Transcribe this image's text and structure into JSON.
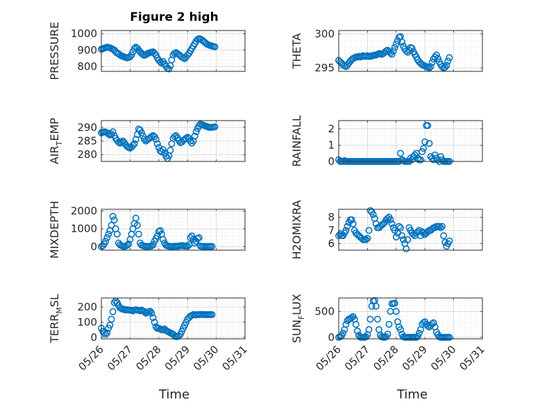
{
  "figure": {
    "title": "Figure 2 high",
    "xlabel": "Time",
    "marker_color": "#0072BD"
  },
  "chart_data": [
    {
      "type": "scatter",
      "title": "Figure 2 high",
      "ylabel": "PRESSURE",
      "ylim": [
        770,
        1020
      ],
      "yticks": [
        "800",
        "900",
        "1000"
      ],
      "ytick_values": [
        800,
        900,
        1000
      ],
      "xticks": [],
      "xlim": [
        0,
        5
      ],
      "x": [
        0.0,
        0.05,
        0.1,
        0.15,
        0.2,
        0.25,
        0.3,
        0.35,
        0.4,
        0.45,
        0.5,
        0.55,
        0.6,
        0.65,
        0.7,
        0.75,
        0.8,
        0.85,
        0.9,
        0.95,
        1.0,
        1.05,
        1.1,
        1.15,
        1.2,
        1.25,
        1.3,
        1.35,
        1.4,
        1.45,
        1.5,
        1.55,
        1.6,
        1.65,
        1.7,
        1.75,
        1.8,
        1.85,
        1.9,
        1.95,
        2.0,
        2.05,
        2.1,
        2.15,
        2.2,
        2.25,
        2.3,
        2.35,
        2.4,
        2.45,
        2.5,
        2.55,
        2.6,
        2.65,
        2.7,
        2.75,
        2.8,
        2.85,
        2.9,
        2.95,
        3.0,
        3.05,
        3.1,
        3.15,
        3.2,
        3.25,
        3.3,
        3.35,
        3.4,
        3.45,
        3.5,
        3.55,
        3.6,
        3.65,
        3.7,
        3.75,
        3.8,
        3.85,
        3.9,
        3.95
      ],
      "values": [
        905,
        908,
        912,
        915,
        918,
        916,
        914,
        910,
        905,
        900,
        890,
        882,
        878,
        870,
        865,
        862,
        858,
        855,
        852,
        855,
        860,
        870,
        890,
        910,
        918,
        912,
        900,
        890,
        880,
        872,
        868,
        872,
        878,
        882,
        885,
        888,
        890,
        880,
        870,
        852,
        838,
        828,
        820,
        830,
        815,
        800,
        790,
        785,
        805,
        840,
        870,
        880,
        885,
        878,
        872,
        865,
        858,
        852,
        848,
        858,
        870,
        880,
        895,
        910,
        925,
        940,
        955,
        965,
        970,
        968,
        962,
        955,
        948,
        940,
        935,
        930,
        928,
        925,
        922,
        920
      ]
    },
    {
      "type": "scatter",
      "ylabel": "THETA",
      "ylim": [
        294.5,
        300.5
      ],
      "yticks": [
        "295",
        "300"
      ],
      "ytick_values": [
        295,
        300
      ],
      "xticks": [],
      "xlim": [
        0,
        5
      ],
      "x": [
        0.0,
        0.05,
        0.1,
        0.15,
        0.2,
        0.25,
        0.3,
        0.35,
        0.4,
        0.45,
        0.5,
        0.55,
        0.6,
        0.65,
        0.7,
        0.75,
        0.8,
        0.85,
        0.9,
        0.95,
        1.0,
        1.05,
        1.1,
        1.15,
        1.2,
        1.25,
        1.3,
        1.35,
        1.4,
        1.45,
        1.5,
        1.55,
        1.6,
        1.65,
        1.7,
        1.75,
        1.8,
        1.85,
        1.9,
        1.95,
        2.0,
        2.05,
        2.1,
        2.15,
        2.2,
        2.25,
        2.3,
        2.35,
        2.4,
        2.45,
        2.5,
        2.55,
        2.6,
        2.65,
        2.7,
        2.75,
        2.8,
        2.85,
        2.9,
        2.95,
        3.0,
        3.05,
        3.1,
        3.15,
        3.2,
        3.25,
        3.3,
        3.35,
        3.4,
        3.45,
        3.5,
        3.55,
        3.6,
        3.65,
        3.7,
        3.75,
        3.8,
        3.85
      ],
      "values": [
        296.1,
        295.9,
        295.7,
        295.5,
        295.3,
        295.2,
        295.4,
        295.7,
        296.0,
        296.2,
        296.4,
        296.5,
        296.6,
        296.6,
        296.7,
        296.6,
        296.7,
        296.8,
        296.7,
        296.7,
        296.8,
        296.7,
        296.7,
        296.8,
        296.8,
        296.9,
        296.9,
        297.0,
        297.1,
        297.1,
        297.0,
        297.1,
        297.3,
        297.5,
        297.6,
        297.4,
        297.2,
        297.0,
        297.5,
        298.0,
        298.5,
        299.0,
        299.5,
        299.6,
        298.8,
        298.2,
        297.8,
        297.5,
        297.3,
        297.6,
        298.0,
        297.9,
        297.4,
        297.0,
        296.6,
        296.2,
        295.9,
        295.7,
        295.5,
        295.4,
        295.3,
        295.2,
        295.1,
        295.0,
        295.2,
        295.8,
        296.3,
        296.6,
        296.9,
        296.4,
        295.9,
        295.5,
        295.2,
        295.0,
        295.1,
        295.4,
        296.0,
        296.5
      ]
    },
    {
      "type": "scatter",
      "ylabel": "AIR_TEMP",
      "ylim": [
        277.5,
        292.5
      ],
      "yticks": [
        "280",
        "285",
        "290"
      ],
      "ytick_values": [
        280,
        285,
        290
      ],
      "xticks": [],
      "xlim": [
        0,
        5
      ],
      "x": [
        0.0,
        0.05,
        0.1,
        0.15,
        0.2,
        0.25,
        0.3,
        0.35,
        0.4,
        0.45,
        0.5,
        0.55,
        0.6,
        0.65,
        0.7,
        0.75,
        0.8,
        0.85,
        0.9,
        0.95,
        1.0,
        1.05,
        1.1,
        1.15,
        1.2,
        1.25,
        1.3,
        1.35,
        1.4,
        1.45,
        1.5,
        1.55,
        1.6,
        1.65,
        1.7,
        1.75,
        1.8,
        1.85,
        1.9,
        1.95,
        2.0,
        2.05,
        2.1,
        2.15,
        2.2,
        2.25,
        2.3,
        2.35,
        2.4,
        2.45,
        2.5,
        2.55,
        2.6,
        2.65,
        2.7,
        2.75,
        2.8,
        2.85,
        2.9,
        2.95,
        3.0,
        3.05,
        3.1,
        3.15,
        3.2,
        3.25,
        3.3,
        3.35,
        3.4,
        3.45,
        3.5,
        3.55,
        3.6,
        3.65,
        3.7,
        3.75,
        3.8,
        3.85,
        3.9,
        3.95
      ],
      "values": [
        288,
        288.2,
        288.4,
        288.3,
        288.0,
        287.6,
        287.2,
        287.6,
        288.4,
        287.0,
        286.0,
        285.2,
        284.6,
        284.2,
        284.6,
        285.0,
        284.4,
        283.6,
        283.0,
        282.6,
        282.4,
        282.8,
        283.4,
        284.0,
        285.6,
        287.4,
        289.4,
        289.0,
        288.0,
        286.8,
        285.6,
        285.0,
        285.4,
        285.8,
        286.2,
        286.6,
        287.0,
        286.6,
        285.6,
        284.0,
        282.6,
        281.4,
        281.0,
        281.8,
        280.6,
        279.4,
        278.6,
        279.6,
        281.6,
        284.0,
        286.0,
        286.6,
        287.0,
        286.2,
        285.2,
        284.4,
        284.6,
        285.2,
        285.6,
        286.0,
        286.4,
        286.0,
        285.0,
        284.2,
        285.0,
        286.8,
        288.4,
        289.6,
        290.6,
        291.2,
        291.0,
        290.8,
        290.6,
        290.4,
        290.2,
        290.0,
        290.0,
        290.0,
        290.1,
        290.2
      ]
    },
    {
      "type": "scatter",
      "ylabel": "RAINFALL",
      "ylim": [
        0,
        2.5
      ],
      "yticks": [
        "0",
        "1",
        "2"
      ],
      "ytick_values": [
        0,
        1,
        2
      ],
      "xticks": [],
      "xlim": [
        0,
        5
      ],
      "x": [
        0.0,
        0.05,
        0.1,
        0.15,
        0.2,
        0.25,
        0.3,
        0.35,
        0.4,
        0.45,
        0.5,
        0.55,
        0.6,
        0.65,
        0.7,
        0.75,
        0.8,
        0.85,
        0.9,
        0.95,
        1.0,
        1.05,
        1.1,
        1.15,
        1.2,
        1.25,
        1.3,
        1.35,
        1.4,
        1.45,
        1.5,
        1.55,
        1.6,
        1.65,
        1.7,
        1.75,
        1.8,
        1.85,
        1.9,
        1.95,
        2.0,
        2.05,
        2.1,
        2.15,
        2.2,
        2.25,
        2.3,
        2.35,
        2.4,
        2.45,
        2.5,
        2.55,
        2.6,
        2.65,
        2.7,
        2.75,
        2.8,
        2.85,
        2.9,
        2.95,
        3.0,
        3.05,
        3.1,
        3.15,
        3.2,
        3.25,
        3.3,
        3.35,
        3.4,
        3.45,
        3.5,
        3.55,
        3.6,
        3.65,
        3.7,
        3.75,
        3.8,
        3.85
      ],
      "values": [
        0.1,
        0,
        0,
        0,
        0.05,
        0,
        0,
        0,
        0,
        0,
        0,
        0,
        0,
        0,
        0,
        0,
        0,
        0,
        0,
        0,
        0,
        0,
        0,
        0,
        0,
        0,
        0,
        0,
        0,
        0,
        0,
        0,
        0,
        0,
        0,
        0,
        0,
        0,
        0,
        0,
        0,
        0,
        0,
        0.5,
        0.1,
        0.05,
        0,
        0,
        0,
        0,
        0.2,
        0.1,
        0.3,
        0.4,
        0.5,
        0.2,
        0.1,
        0.1,
        0.6,
        0.8,
        1.2,
        2.2,
        2.2,
        1.1,
        0.3,
        0.2,
        0.1,
        0.4,
        0.2,
        0.1,
        0,
        0.3,
        0.1,
        0,
        0,
        0,
        0,
        0
      ]
    },
    {
      "type": "scatter",
      "ylabel": "MIXDEPTH",
      "ylim": [
        -200,
        2100
      ],
      "yticks": [
        "0",
        "1000",
        "2000"
      ],
      "ytick_values": [
        0,
        1000,
        2000
      ],
      "xticks": [],
      "xlim": [
        0,
        5
      ],
      "x": [
        0.0,
        0.05,
        0.1,
        0.15,
        0.2,
        0.25,
        0.3,
        0.35,
        0.4,
        0.45,
        0.5,
        0.55,
        0.6,
        0.65,
        0.7,
        0.75,
        0.8,
        0.85,
        0.9,
        0.95,
        1.0,
        1.05,
        1.1,
        1.15,
        1.2,
        1.25,
        1.3,
        1.35,
        1.4,
        1.45,
        1.5,
        1.55,
        1.6,
        1.65,
        1.7,
        1.75,
        1.8,
        1.85,
        1.9,
        1.95,
        2.0,
        2.05,
        2.1,
        2.15,
        2.2,
        2.25,
        2.3,
        2.35,
        2.4,
        2.45,
        2.5,
        2.55,
        2.6,
        2.65,
        2.7,
        2.75,
        2.8,
        2.85,
        2.9,
        2.95,
        3.0,
        3.05,
        3.1,
        3.15,
        3.2,
        3.25,
        3.3,
        3.35,
        3.4,
        3.45,
        3.5,
        3.55,
        3.6,
        3.65,
        3.7,
        3.75,
        3.8,
        3.85
      ],
      "values": [
        0,
        50,
        150,
        300,
        500,
        700,
        900,
        1200,
        1700,
        1500,
        1000,
        700,
        200,
        100,
        50,
        20,
        10,
        30,
        80,
        150,
        400,
        700,
        1000,
        1300,
        1600,
        1200,
        700,
        200,
        80,
        50,
        20,
        10,
        10,
        10,
        20,
        40,
        100,
        300,
        450,
        600,
        850,
        900,
        700,
        400,
        200,
        80,
        40,
        20,
        10,
        10,
        10,
        20,
        20,
        20,
        30,
        50,
        60,
        40,
        30,
        30,
        20,
        100,
        500,
        600,
        400,
        200,
        300,
        450,
        500,
        30,
        10,
        10,
        10,
        10,
        10,
        10,
        10,
        10
      ]
    },
    {
      "type": "scatter",
      "ylabel": "H2OMIXRA",
      "ylim": [
        5.5,
        8.6
      ],
      "yticks": [
        "6",
        "7",
        "8"
      ],
      "ytick_values": [
        6,
        7,
        8
      ],
      "xticks": [],
      "xlim": [
        0,
        5
      ],
      "x": [
        0.0,
        0.05,
        0.1,
        0.15,
        0.2,
        0.25,
        0.3,
        0.35,
        0.4,
        0.45,
        0.5,
        0.55,
        0.6,
        0.65,
        0.7,
        0.75,
        0.8,
        0.85,
        0.9,
        0.95,
        1.0,
        1.05,
        1.1,
        1.15,
        1.2,
        1.25,
        1.3,
        1.35,
        1.4,
        1.45,
        1.5,
        1.55,
        1.6,
        1.65,
        1.7,
        1.75,
        1.8,
        1.85,
        1.9,
        1.95,
        2.0,
        2.05,
        2.1,
        2.15,
        2.2,
        2.25,
        2.3,
        2.35,
        2.4,
        2.45,
        2.5,
        2.55,
        2.6,
        2.65,
        2.7,
        2.75,
        2.8,
        2.85,
        2.9,
        2.95,
        3.0,
        3.05,
        3.1,
        3.15,
        3.2,
        3.25,
        3.3,
        3.35,
        3.4,
        3.45,
        3.5,
        3.55,
        3.6,
        3.65,
        3.7,
        3.75,
        3.8,
        3.85
      ],
      "values": [
        6.6,
        6.7,
        6.6,
        6.6,
        6.8,
        7.0,
        7.3,
        7.6,
        7.8,
        7.8,
        7.5,
        7.0,
        6.8,
        6.7,
        6.6,
        6.5,
        6.4,
        6.3,
        6.3,
        6.3,
        6.4,
        7.0,
        8.5,
        8.4,
        8.2,
        7.9,
        7.5,
        7.2,
        7.2,
        7.3,
        7.4,
        7.5,
        7.6,
        7.8,
        7.9,
        8.0,
        7.8,
        7.5,
        7.2,
        7.0,
        6.5,
        6.8,
        7.3,
        7.2,
        6.6,
        6.3,
        6.0,
        5.6,
        6.3,
        7.2,
        7.0,
        6.8,
        6.7,
        6.6,
        6.8,
        6.9,
        7.0,
        6.6,
        6.9,
        6.8,
        6.7,
        6.8,
        6.9,
        7.0,
        7.0,
        7.1,
        7.2,
        7.2,
        7.3,
        7.3,
        7.3,
        7.2,
        7.3,
        6.6,
        6.1,
        5.8,
        6.0,
        6.2
      ]
    },
    {
      "type": "scatter",
      "ylabel": "TERR_MSL",
      "ylim": [
        -10,
        260
      ],
      "yticks": [
        "0",
        "100",
        "200"
      ],
      "ytick_values": [
        0,
        100,
        200
      ],
      "xticks": [
        "05/26",
        "05/27",
        "05/28",
        "05/29",
        "05/30",
        "05/31"
      ],
      "xlim": [
        0,
        5
      ],
      "x": [
        0.0,
        0.05,
        0.1,
        0.15,
        0.2,
        0.25,
        0.3,
        0.35,
        0.4,
        0.45,
        0.5,
        0.55,
        0.6,
        0.65,
        0.7,
        0.75,
        0.8,
        0.85,
        0.9,
        0.95,
        1.0,
        1.05,
        1.1,
        1.15,
        1.2,
        1.25,
        1.3,
        1.35,
        1.4,
        1.45,
        1.5,
        1.55,
        1.6,
        1.65,
        1.7,
        1.75,
        1.8,
        1.85,
        1.9,
        1.95,
        2.0,
        2.05,
        2.1,
        2.15,
        2.2,
        2.25,
        2.3,
        2.35,
        2.4,
        2.45,
        2.5,
        2.55,
        2.6,
        2.65,
        2.7,
        2.75,
        2.8,
        2.85,
        2.9,
        2.95,
        3.0,
        3.05,
        3.1,
        3.15,
        3.2,
        3.25,
        3.3,
        3.35,
        3.4,
        3.45,
        3.5,
        3.55,
        3.6,
        3.65,
        3.7,
        3.75,
        3.8,
        3.85
      ],
      "values": [
        60,
        40,
        30,
        20,
        30,
        60,
        80,
        120,
        170,
        230,
        240,
        230,
        210,
        195,
        190,
        185,
        185,
        180,
        182,
        180,
        180,
        178,
        175,
        180,
        182,
        180,
        178,
        175,
        180,
        175,
        170,
        160,
        165,
        170,
        172,
        160,
        130,
        100,
        70,
        60,
        60,
        55,
        50,
        50,
        55,
        45,
        40,
        35,
        30,
        25,
        20,
        10,
        5,
        5,
        10,
        20,
        40,
        60,
        80,
        100,
        120,
        130,
        140,
        145,
        150,
        150,
        148,
        150,
        150,
        150,
        152,
        150,
        150,
        150,
        150,
        150,
        150,
        150
      ]
    },
    {
      "type": "scatter",
      "ylabel": "SUN_FLUX",
      "ylim": [
        -30,
        760
      ],
      "yticks": [
        "0",
        "500"
      ],
      "ytick_values": [
        0,
        500
      ],
      "xticks": [
        "05/26",
        "05/27",
        "05/28",
        "05/29",
        "05/30",
        "05/31"
      ],
      "xlim": [
        0,
        5
      ],
      "x": [
        0.0,
        0.05,
        0.1,
        0.15,
        0.2,
        0.25,
        0.3,
        0.35,
        0.4,
        0.45,
        0.5,
        0.55,
        0.6,
        0.65,
        0.7,
        0.75,
        0.8,
        0.85,
        0.9,
        0.95,
        1.0,
        1.05,
        1.1,
        1.15,
        1.2,
        1.25,
        1.3,
        1.35,
        1.4,
        1.45,
        1.5,
        1.55,
        1.6,
        1.65,
        1.7,
        1.75,
        1.8,
        1.85,
        1.9,
        1.95,
        2.0,
        2.05,
        2.1,
        2.15,
        2.2,
        2.25,
        2.3,
        2.35,
        2.4,
        2.45,
        2.5,
        2.55,
        2.6,
        2.65,
        2.7,
        2.75,
        2.8,
        2.85,
        2.9,
        2.95,
        3.0,
        3.05,
        3.1,
        3.15,
        3.2,
        3.25,
        3.3,
        3.35,
        3.4,
        3.45,
        3.5,
        3.55,
        3.6,
        3.65,
        3.7,
        3.75,
        3.8,
        3.85
      ],
      "values": [
        0,
        10,
        30,
        80,
        150,
        250,
        320,
        350,
        360,
        380,
        400,
        350,
        250,
        120,
        40,
        5,
        0,
        0,
        0,
        10,
        50,
        150,
        350,
        600,
        700,
        710,
        600,
        350,
        150,
        40,
        10,
        0,
        0,
        10,
        60,
        250,
        500,
        650,
        650,
        660,
        500,
        300,
        200,
        150,
        60,
        10,
        0,
        0,
        0,
        0,
        0,
        0,
        0,
        0,
        0,
        20,
        80,
        150,
        250,
        280,
        300,
        250,
        220,
        200,
        230,
        260,
        280,
        200,
        100,
        50,
        10,
        0,
        0,
        0,
        0,
        0,
        0,
        0
      ]
    }
  ]
}
